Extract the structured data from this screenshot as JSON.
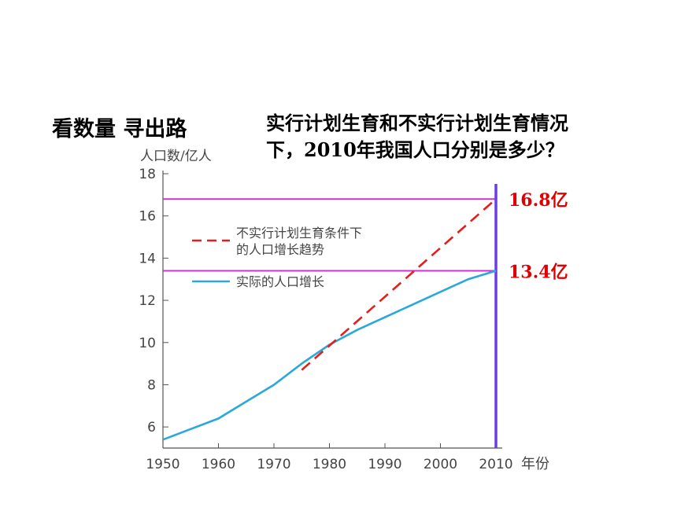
{
  "heading": "看数量  寻出路",
  "question": {
    "line1": "实行计划生育和不实行计划生育情况",
    "line2": "下，2010年我国人口分别是多少？"
  },
  "colors": {
    "actual": "#2aa8dc",
    "trend": "#e02020",
    "refline": "#cc33cc",
    "marker": "#6a3ee0",
    "callout": "#e00000",
    "axis": "#555555"
  },
  "chart_data": {
    "type": "line",
    "ylabel": "人口数/亿人",
    "xunit": "年份",
    "xlim": [
      1950,
      2010
    ],
    "ylim": [
      5,
      18
    ],
    "xticks": [
      1950,
      1960,
      1970,
      1980,
      1990,
      2000,
      2010
    ],
    "yticks": [
      6,
      8,
      10,
      12,
      14,
      16,
      18
    ],
    "legend_position": "upper-left",
    "series": [
      {
        "name": "实际的人口增长",
        "style": "solid",
        "x": [
          1950,
          1955,
          1960,
          1965,
          1970,
          1975,
          1980,
          1985,
          1990,
          1995,
          2000,
          2005,
          2010
        ],
        "y": [
          5.4,
          5.9,
          6.4,
          7.2,
          8.0,
          9.0,
          9.9,
          10.6,
          11.2,
          11.8,
          12.4,
          13.0,
          13.4
        ]
      },
      {
        "name": "不实行计划生育条件下的人口增长趋势",
        "legend_lines": [
          "不实行计划生育条件下",
          "的人口增长趋势"
        ],
        "style": "dashed",
        "x": [
          1975,
          2010
        ],
        "y": [
          8.7,
          16.8
        ]
      }
    ],
    "reference_lines": [
      {
        "y": 16.8,
        "label": "16.8亿"
      },
      {
        "y": 13.4,
        "label": "13.4亿"
      }
    ],
    "vertical_marker": {
      "x": 2010
    }
  }
}
